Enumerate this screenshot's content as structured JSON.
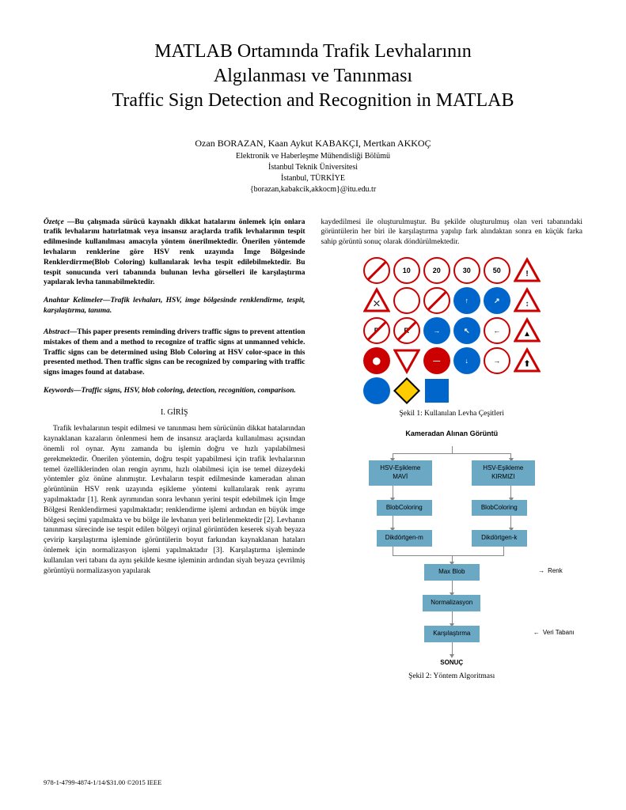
{
  "title": {
    "line1": "MATLAB Ortamında Trafik Levhalarının",
    "line2": "Algılanması ve Tanınması",
    "line3": "Traffic Sign Detection and Recognition in MATLAB"
  },
  "authors": {
    "names": "Ozan BORAZAN, Kaan Aykut KABAKÇI, Mertkan AKKOÇ",
    "dept": "Elektronik ve Haberleşme Mühendisliği Bölümü",
    "univ": "İstanbul Teknik Üniversitesi",
    "city": "İstanbul, TÜRKİYE",
    "emails": "{borazan,kabakcik,akkocm}@itu.edu.tr"
  },
  "abstracts": {
    "ozetce_label": "Özetçe —",
    "ozetce_text": "Bu çalışmada sürücü kaynaklı dikkat hatalarını önlemek için onlara trafik levhalarını hatırlatmak veya insansız araçlarda trafik levhalarının tespit edilmesinde kullanılması amacıyla yöntem önerilmektedir. Önerilen yöntemde levhaların renklerine göre HSV renk uzayında İmge Bölgesinde Renklerdirrme(Blob Coloring) kullanılarak levha tespit edilebilmektedir. Bu tespit sonucunda veri tabanında bulunan levha görselleri ile karşılaştırma yapılarak levha tanınabilmektedir.",
    "anahtar_label": "Anahtar Kelimeler—",
    "anahtar_text": "Trafik levhaları, HSV, imge bölgesinde renklendirme, tespit, karşılaştırma, tanıma.",
    "abstract_label": "Abstract—",
    "abstract_text": "This paper presents reminding drivers traffic signs to prevent attention mistakes of them and a method to recognize of traffic signs at unmanned vehicle. Traffic signs can be determined using Blob Coloring at HSV color-space in this presented method. Then traffic signs can be recognized by comparing with traffic signs images found at database.",
    "keywords_label": "Keywords—",
    "keywords_text": "Traffic signs, HSV, blob coloring, detection, recognition, comparison."
  },
  "section1": {
    "heading": "I.    GİRİŞ",
    "para1": "Trafik levhalarının tespit edilmesi ve tanınması hem sürücünün dikkat hatalarından kaynaklanan kazaların önlenmesi hem de insansız araçlarda kullanılması açısından önemli rol oynar. Aynı zamanda bu işlemin doğru ve hızlı yapılabilmesi gerekmektedir. Önerilen yöntemin, doğru tespit yapabilmesi için trafik levhalarının temel özelliklerinden olan rengin ayrımı, hızlı olabilmesi için ise temel düzeydeki yöntemler göz önüne alınmıştır. Levhaların tespit edilmesinde kameradan alınan görüntünün HSV renk uzayında eşikleme yöntemi kullanılarak renk ayrımı yapılmaktadır [1]. Renk ayrımından sonra levhanın yerini tespit edebilmek için İmge Bölgesi Renklendirmesi yapılmaktadır; renklendirme işlemi ardından en büyük imge bölgesi seçimi yapılmakta ve bu bölge ile levhanın yeri belirlenmektedir [2]. Levhanın tanınması sürecinde ise tespit edilen bölgeyi orjinal görüntüden keserek siyah beyaza çevirip karşılaştırma işleminde görüntülerin boyut farkından kaynaklanan hataları önlemek için normalizasyon işlemi yapılmaktadır [3]. Karşılaştırma işleminde kullanılan veri tabanı da aynı şekilde kesme işleminin ardından siyah beyaza çevrilmiş görüntüyü normalizasyon yapılarak"
  },
  "col2_intro": "kaydedilmesi ile oluşturulmuştur. Bu şekilde oluşturulmuş olan veri tabanındaki görüntülerin her biri ile karşılaştırma yapılıp fark alındaktan sonra en küçük farka sahip görüntü sonuç olarak döndürülmektedir.",
  "figure1": {
    "caption": "Şekil 1: Kullanılan Levha Çeşitleri",
    "signs": [
      {
        "type": "circle-red-slash",
        "text": ""
      },
      {
        "type": "circle-red",
        "text": "10"
      },
      {
        "type": "circle-red",
        "text": "20"
      },
      {
        "type": "circle-red",
        "text": "30"
      },
      {
        "type": "circle-red",
        "text": "50"
      },
      {
        "type": "triangle-red",
        "inner": "!"
      },
      {
        "type": "triangle-red",
        "inner": "⛌"
      },
      {
        "type": "circle-red",
        "inner_svg": "car"
      },
      {
        "type": "circle-red-slash",
        "inner_svg": "truck"
      },
      {
        "type": "circle-blue",
        "inner": "↑"
      },
      {
        "type": "circle-blue",
        "inner": "↗"
      },
      {
        "type": "triangle-red",
        "inner": "↕"
      },
      {
        "type": "circle-red-slash",
        "text": "P"
      },
      {
        "type": "circle-red-slash",
        "text": "R"
      },
      {
        "type": "circle-blue",
        "inner": "→"
      },
      {
        "type": "circle-blue",
        "inner": "↖"
      },
      {
        "type": "circle-red",
        "inner": "←"
      },
      {
        "type": "triangle-red",
        "inner": "▲"
      },
      {
        "type": "circle-red-fill",
        "inner": "⬤"
      },
      {
        "type": "triangle-down-red",
        "inner": ""
      },
      {
        "type": "circle-red-fill",
        "inner": "—"
      },
      {
        "type": "circle-blue",
        "inner": "↓"
      },
      {
        "type": "circle-red",
        "inner": "→"
      },
      {
        "type": "triangle-red",
        "inner": "⬆"
      },
      {
        "type": "circle-blue",
        "inner_svg": "ped"
      },
      {
        "type": "diamond-yellow",
        "inner": ""
      },
      {
        "type": "square-blue",
        "inner_svg": "worker"
      }
    ]
  },
  "figure2": {
    "caption": "Şekil 2: Yöntem Algoritması",
    "flow": {
      "top_title": "Kameradan Alınan Görüntü",
      "hsv_blue": "HSV-Eşikleme\nMAVİ",
      "hsv_red": "HSV-Eşikleme\nKIRMIZI",
      "blob_l": "BlobColoring",
      "blob_r": "BlobColoring",
      "rect_m": "Dikdörtgen-m",
      "rect_k": "Dikdörtgen-k",
      "maxblob": "Max Blob",
      "renk_label": "Renk",
      "norm": "Normalizasyon",
      "compare": "Karşılaştırma",
      "db_label": "Veri Tabanı",
      "result": "SONUÇ"
    },
    "colors": {
      "box_bg": "#6ba8c4",
      "connector": "#888888",
      "text": "#000000"
    }
  },
  "footer": "978-1-4799-4874-1/14/$31.00 ©2015 IEEE"
}
